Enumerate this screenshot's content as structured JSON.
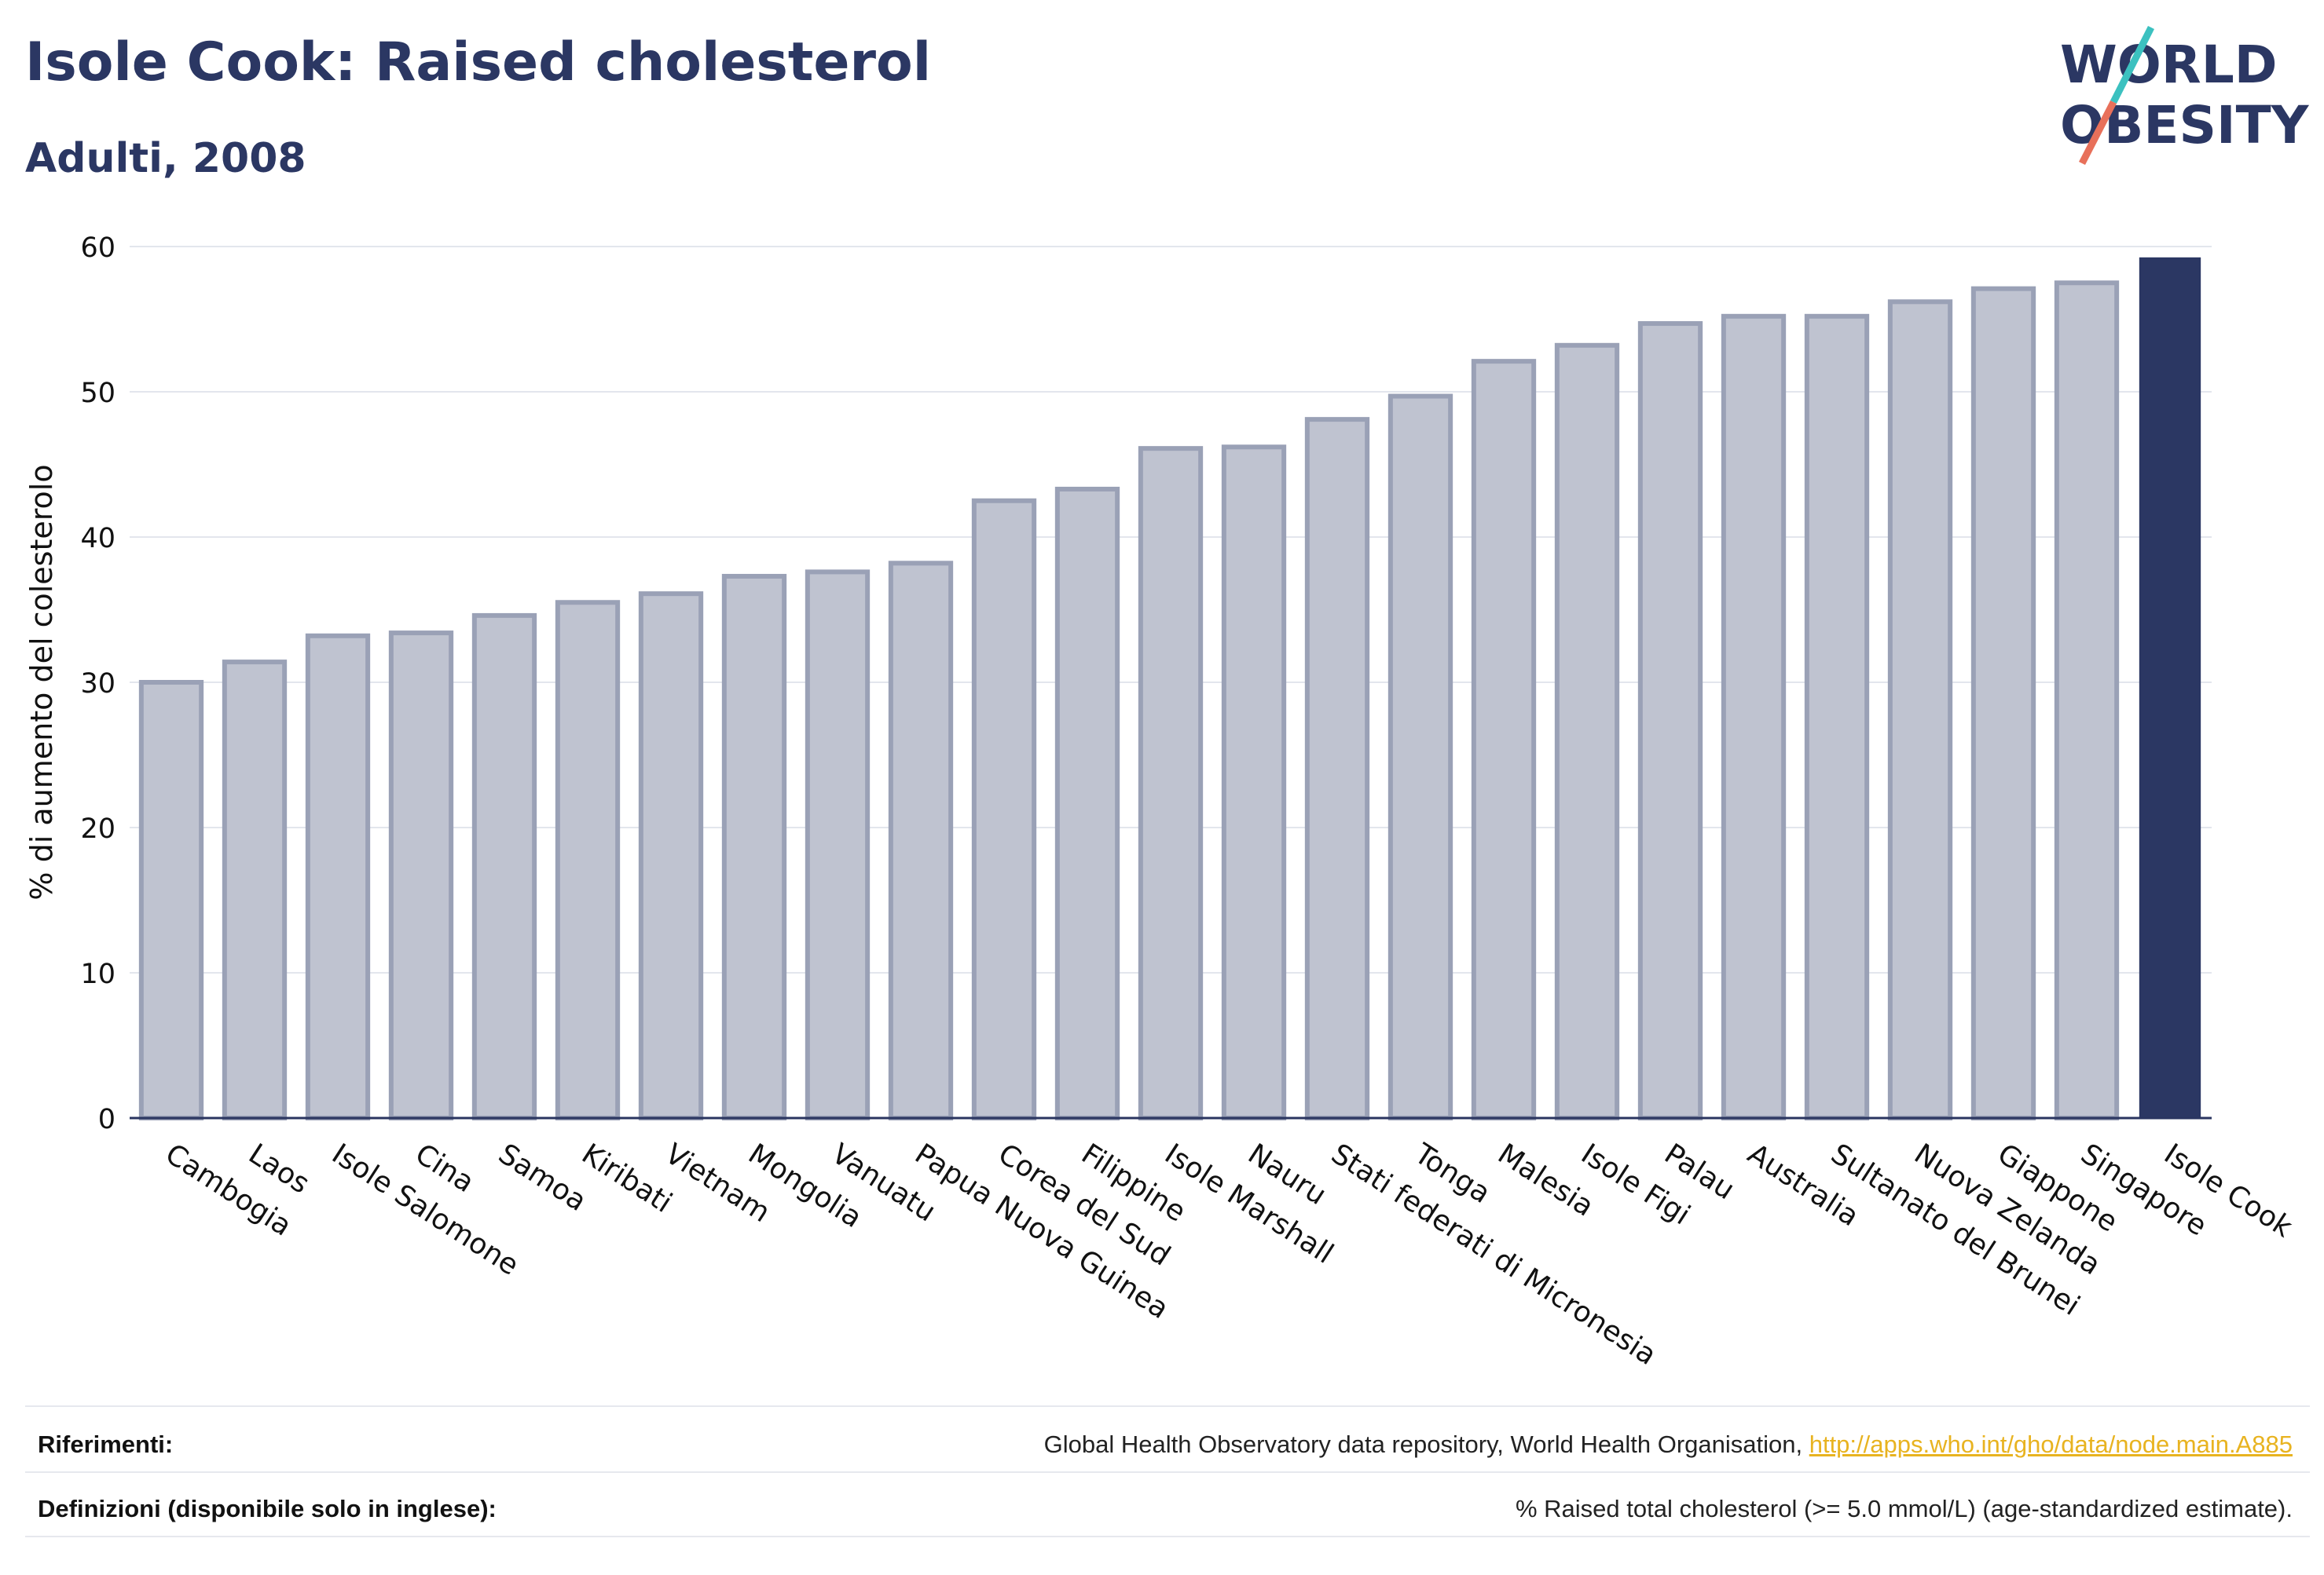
{
  "header": {
    "title": "Isole Cook: Raised cholesterol",
    "subtitle": "Adulti, 2008"
  },
  "logo": {
    "line1": "WORLD",
    "line2": "OBESITY"
  },
  "colors": {
    "bar": "#bfc3d0",
    "bar_border": "#9aa1b6",
    "highlight": "#2b3763",
    "grid": "#e3e6ed",
    "logo_teal": "#3cc1c0",
    "logo_coral": "#e8705a"
  },
  "chart_data": {
    "type": "bar",
    "categories": [
      "Cambogia",
      "Laos",
      "Isole Salomone",
      "Cina",
      "Samoa",
      "Kiribati",
      "Vietnam",
      "Mongolia",
      "Vanuatu",
      "Papua Nuova Guinea",
      "Corea del Sud",
      "Filippine",
      "Isole Marshall",
      "Nauru",
      "Stati federati di Micronesia",
      "Tonga",
      "Malesia",
      "Isole Figi",
      "Palau",
      "Australia",
      "Sultanato del Brunei",
      "Nuova Zelanda",
      "Giappone",
      "Singapore",
      "Isole Cook"
    ],
    "values": [
      30.0,
      31.4,
      33.2,
      33.4,
      34.6,
      35.5,
      36.1,
      37.3,
      37.6,
      38.2,
      42.5,
      43.3,
      46.1,
      46.2,
      48.1,
      49.7,
      52.1,
      53.2,
      54.7,
      55.2,
      55.2,
      56.2,
      57.1,
      57.5,
      59.2
    ],
    "highlight": "Isole Cook",
    "ylabel": "% di aumento del colesterolo",
    "xlabel": "",
    "ylim": [
      0,
      60
    ],
    "yticks": [
      0,
      10,
      20,
      30,
      40,
      50,
      60
    ],
    "grid": true
  },
  "footer": {
    "references_label": "Riferimenti:",
    "references_text": "Global Health Observatory data repository, World Health Organisation, ",
    "references_link": "http://apps.who.int/gho/data/node.main.A885",
    "definitions_label": "Definizioni (disponibile solo in inglese):",
    "definitions_text": "% Raised total cholesterol (>= 5.0 mmol/L) (age-standardized estimate)."
  }
}
